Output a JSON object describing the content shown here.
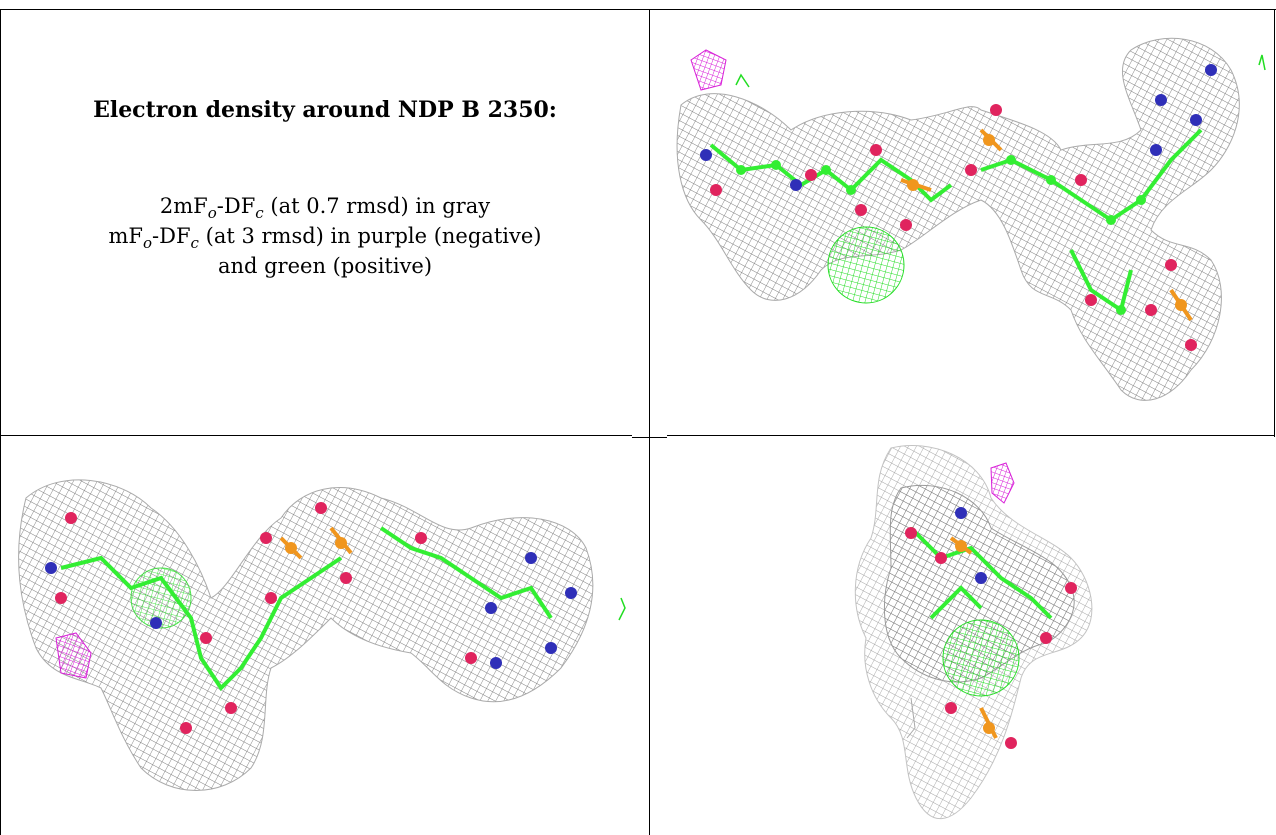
{
  "caption": {
    "title": "Electron density around NDP B 2350:",
    "line1": {
      "pre": "2mF",
      "sub1": "o",
      "mid": "-DF",
      "sub2": "c",
      "post": " (at 0.7 rmsd) in gray"
    },
    "line2": {
      "pre": "mF",
      "sub1": "o",
      "mid": "-DF",
      "sub2": "c",
      "post": " (at 3 rmsd) in purple (negative)"
    },
    "line3": "and green (positive)"
  },
  "colors": {
    "mesh_gray": "#8c8c8c",
    "carbon_green": "#33ee33",
    "oxygen_red": "#e0245e",
    "nitrogen_blue": "#2f2fb8",
    "phosphorus_orange": "#f0961e",
    "negative_purple": "#d81ed8",
    "positive_green": "#22dd22"
  },
  "panels": [
    {
      "view": "top-right",
      "icon": "electron-density-mesh-view-1"
    },
    {
      "view": "bottom-left",
      "icon": "electron-density-mesh-view-2"
    },
    {
      "view": "bottom-right",
      "icon": "electron-density-mesh-view-3"
    }
  ]
}
